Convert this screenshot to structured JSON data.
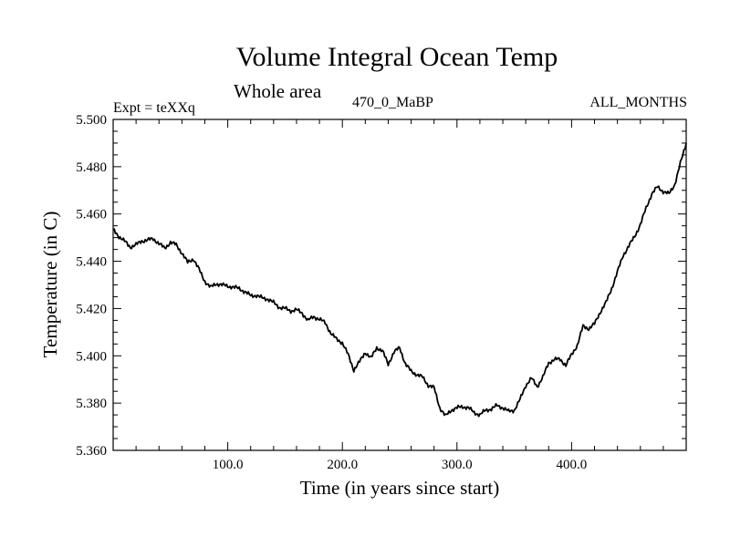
{
  "header": {
    "title": "Volume Integral Ocean Temp",
    "subtitle": "Whole area",
    "expt": "Expt = teXXq",
    "period": "470_0_MaBP",
    "months": "ALL_MONTHS"
  },
  "chart_data": {
    "type": "line",
    "title": "Volume Integral Ocean Temp",
    "subtitle": "Whole area",
    "xlabel": "Time (in years since start)",
    "ylabel": "Temperature (in C)",
    "xlim": [
      0,
      500
    ],
    "ylim": [
      5.36,
      5.5
    ],
    "xticks": [
      100,
      200,
      300,
      400
    ],
    "xtick_labels": [
      "100.0",
      "200.0",
      "300.0",
      "400.0"
    ],
    "yticks": [
      5.36,
      5.38,
      5.4,
      5.42,
      5.44,
      5.46,
      5.48,
      5.5
    ],
    "ytick_labels": [
      "5.360",
      "5.380",
      "5.400",
      "5.420",
      "5.440",
      "5.460",
      "5.480",
      "5.500"
    ],
    "grid": false,
    "series": [
      {
        "name": "Volume integral ocean temperature",
        "color": "#000000",
        "x": [
          0,
          5,
          10,
          15,
          20,
          25,
          30,
          35,
          40,
          45,
          50,
          55,
          60,
          65,
          70,
          75,
          80,
          85,
          90,
          95,
          100,
          105,
          110,
          115,
          120,
          125,
          130,
          135,
          140,
          145,
          150,
          155,
          160,
          165,
          170,
          175,
          180,
          185,
          190,
          195,
          200,
          205,
          210,
          215,
          220,
          225,
          230,
          235,
          240,
          245,
          250,
          255,
          260,
          265,
          270,
          275,
          280,
          285,
          290,
          295,
          300,
          305,
          310,
          315,
          320,
          325,
          330,
          335,
          340,
          345,
          350,
          355,
          360,
          365,
          370,
          375,
          380,
          385,
          390,
          395,
          400,
          405,
          410,
          415,
          420,
          425,
          430,
          435,
          440,
          445,
          450,
          455,
          460,
          465,
          470,
          475,
          480,
          485,
          490,
          495,
          500
        ],
        "values": [
          5.4535,
          5.4505,
          5.4485,
          5.446,
          5.447,
          5.4485,
          5.449,
          5.4495,
          5.4475,
          5.4455,
          5.448,
          5.447,
          5.4435,
          5.4395,
          5.441,
          5.4365,
          5.4315,
          5.429,
          5.4305,
          5.43,
          5.4295,
          5.429,
          5.4285,
          5.427,
          5.4255,
          5.4255,
          5.4245,
          5.424,
          5.4225,
          5.4205,
          5.42,
          5.419,
          5.4195,
          5.418,
          5.415,
          5.4165,
          5.4155,
          5.414,
          5.4095,
          5.407,
          5.4055,
          5.4005,
          5.394,
          5.3975,
          5.4015,
          5.399,
          5.4035,
          5.402,
          5.3965,
          5.4015,
          5.4035,
          5.3965,
          5.3935,
          5.392,
          5.391,
          5.3875,
          5.3865,
          5.378,
          5.3745,
          5.377,
          5.378,
          5.3785,
          5.378,
          5.376,
          5.375,
          5.377,
          5.3775,
          5.379,
          5.378,
          5.3765,
          5.377,
          5.3815,
          5.3875,
          5.3905,
          5.387,
          5.391,
          5.397,
          5.3985,
          5.3985,
          5.396,
          5.4005,
          5.4045,
          5.4125,
          5.4115,
          5.4135,
          5.4185,
          5.4225,
          5.4285,
          5.4355,
          5.4425,
          5.4465,
          5.4505,
          5.4555,
          5.4625,
          5.4685,
          5.4715,
          5.4695,
          5.4685,
          5.4725,
          5.4815,
          5.49
        ]
      }
    ]
  }
}
